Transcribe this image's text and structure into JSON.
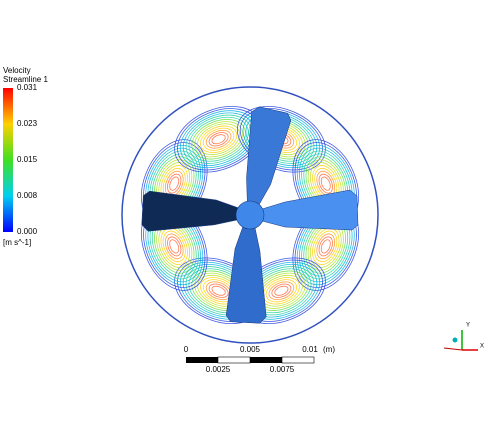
{
  "legend": {
    "title": "Velocity",
    "subtitle": "Streamline 1",
    "ticks": [
      "0.031",
      "0.023",
      "0.015",
      "0.008",
      "0.000"
    ],
    "unit": "[m s^-1]"
  },
  "scale_bar": {
    "top_labels": [
      "0",
      "0.005",
      "0.01"
    ],
    "unit": "(m)",
    "bottom_labels": [
      "0.0025",
      "0.0075"
    ]
  },
  "axes": {
    "y": "Y",
    "x": "X"
  }
}
